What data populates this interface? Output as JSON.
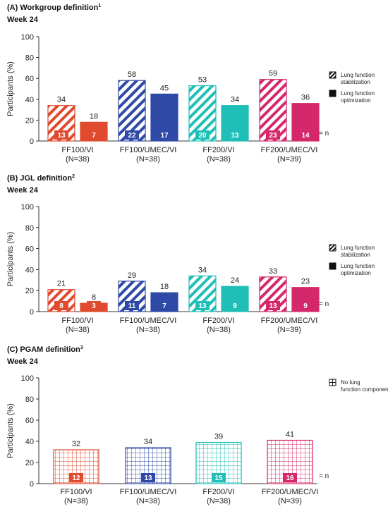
{
  "panels": [
    {
      "title_prefix": "(A) Workgroup definition",
      "title_sup": "1",
      "subtitle": "Week 24"
    },
    {
      "title_prefix": "(B) JGL definition",
      "title_sup": "2",
      "subtitle": "Week 24"
    },
    {
      "title_prefix": "(C) PGAM definition",
      "title_sup": "3",
      "subtitle": "Week 24"
    }
  ],
  "n_equals_label": "= n",
  "colors": {
    "ff100_vi": "#e04a2e",
    "ff100_umec_vi": "#2e49a6",
    "ff200_vi": "#1fbfb8",
    "ff200_umec_vi": "#d4286a"
  },
  "chart_data": [
    {
      "type": "bar",
      "ylabel": "Participants (%)",
      "ylim": [
        0,
        100
      ],
      "yticks": [
        0,
        20,
        40,
        60,
        80,
        100
      ],
      "categories": [
        "FF100/VI\n(N=38)",
        "FF100/UMEC/VI\n(N=38)",
        "FF200/VI\n(N=38)",
        "FF200/UMEC/VI\n(N=39)"
      ],
      "series": [
        {
          "name": "Lung function stabilization",
          "pattern": "hatch",
          "values": [
            34,
            58,
            53,
            59
          ],
          "n": [
            13,
            22,
            20,
            23
          ]
        },
        {
          "name": "Lung function optimization",
          "pattern": "solid",
          "values": [
            18,
            45,
            34,
            36
          ],
          "n": [
            7,
            17,
            13,
            14
          ]
        }
      ],
      "legend_position": "right"
    },
    {
      "type": "bar",
      "ylabel": "Participants (%)",
      "ylim": [
        0,
        100
      ],
      "yticks": [
        0,
        20,
        40,
        60,
        80,
        100
      ],
      "categories": [
        "FF100/VI\n(N=38)",
        "FF100/UMEC/VI\n(N=38)",
        "FF200/VI\n(N=38)",
        "FF200/UMEC/VI\n(N=39)"
      ],
      "series": [
        {
          "name": "Lung function stabilization",
          "pattern": "hatch",
          "values": [
            21,
            29,
            34,
            33
          ],
          "n": [
            8,
            11,
            13,
            13
          ]
        },
        {
          "name": "Lung function optimization",
          "pattern": "solid",
          "values": [
            8,
            18,
            24,
            23
          ],
          "n": [
            3,
            7,
            9,
            9
          ]
        }
      ],
      "legend_position": "right"
    },
    {
      "type": "bar",
      "ylabel": "Participants (%)",
      "ylim": [
        0,
        100
      ],
      "yticks": [
        0,
        20,
        40,
        60,
        80,
        100
      ],
      "categories": [
        "FF100/VI\n(N=38)",
        "FF100/UMEC/VI\n(N=38)",
        "FF200/VI\n(N=38)",
        "FF200/UMEC/VI\n(N=39)"
      ],
      "series": [
        {
          "name": "No lung function component",
          "pattern": "grid",
          "values": [
            32,
            34,
            39,
            41
          ],
          "n": [
            12,
            13,
            15,
            16
          ]
        }
      ],
      "legend_position": "right"
    }
  ]
}
